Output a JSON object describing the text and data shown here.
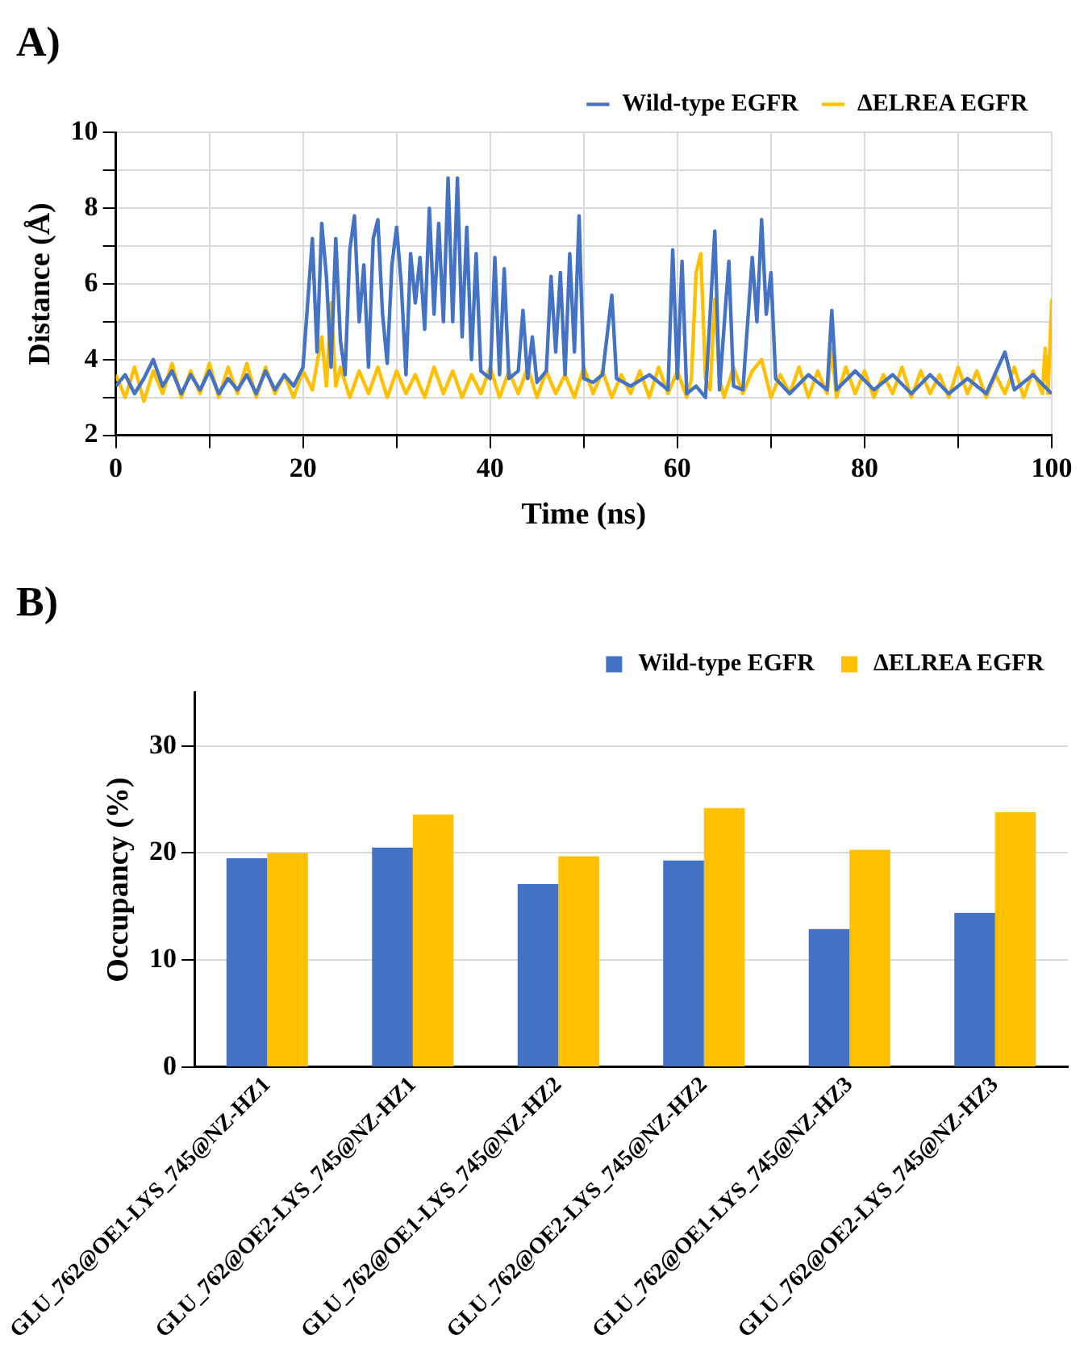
{
  "chart_data": [
    {
      "type": "line",
      "title": "A)",
      "xlabel": "Time (ns)",
      "ylabel": "Distance (Å)",
      "xlim": [
        0,
        100
      ],
      "xticks": [
        0,
        {
          "value": 10,
          "label": null
        },
        20,
        {
          "value": 30,
          "label": null
        },
        40,
        {
          "value": 50,
          "label": null
        },
        60,
        {
          "value": 70,
          "label": null
        },
        80,
        {
          "value": 90,
          "label": null
        },
        100
      ],
      "ylim": [
        2,
        10
      ],
      "yticks": [
        2,
        {
          "value": 3,
          "label": null
        },
        4,
        {
          "value": 5,
          "label": null
        },
        6,
        {
          "value": 7,
          "label": null
        },
        8,
        {
          "value": 9,
          "label": null
        },
        10
      ],
      "grid": true,
      "legend": "top right",
      "marker": "none",
      "line_style": "solid",
      "series": [
        {
          "name": "Wild-type EGFR",
          "color": "#4472c4",
          "x": [
            0,
            1,
            2,
            3,
            4,
            5,
            6,
            7,
            8,
            9,
            10,
            11,
            12,
            13,
            14,
            15,
            16,
            17,
            18,
            19,
            20,
            20.5,
            21,
            21.5,
            22,
            22.5,
            23,
            23.5,
            24,
            24.5,
            25,
            25.5,
            26,
            26.5,
            27,
            27.5,
            28,
            28.5,
            29,
            29.5,
            30,
            30.5,
            31,
            31.5,
            32,
            32.5,
            33,
            33.5,
            34,
            34.5,
            35,
            35.5,
            36,
            36.5,
            37,
            37.5,
            38,
            38.5,
            39,
            40,
            40.5,
            41,
            41.5,
            42,
            43,
            43.5,
            44,
            44.5,
            45,
            46,
            46.5,
            47,
            47.5,
            48,
            48.5,
            49,
            49.5,
            50,
            51,
            52,
            53,
            53.5,
            55,
            57,
            59,
            59.5,
            60,
            60.5,
            61,
            62,
            63,
            64,
            64.5,
            65.5,
            66,
            67,
            68,
            68.5,
            69,
            69.5,
            70,
            70.5,
            72,
            74,
            76,
            76.5,
            77,
            79,
            81,
            83,
            85,
            87,
            89,
            91,
            93,
            95,
            96,
            98,
            100
          ],
          "values": [
            3.3,
            3.6,
            3.1,
            3.5,
            4.0,
            3.3,
            3.7,
            3.1,
            3.6,
            3.2,
            3.7,
            3.1,
            3.5,
            3.2,
            3.6,
            3.1,
            3.7,
            3.2,
            3.6,
            3.3,
            3.8,
            5.5,
            7.2,
            4.2,
            7.6,
            6.2,
            3.8,
            7.2,
            4.5,
            3.6,
            6.9,
            7.8,
            5.0,
            6.5,
            3.8,
            7.2,
            7.7,
            5.2,
            3.9,
            6.5,
            7.5,
            6.0,
            3.6,
            6.8,
            5.5,
            6.7,
            4.8,
            8.0,
            5.2,
            7.6,
            5.0,
            8.8,
            5.0,
            8.8,
            4.6,
            7.5,
            4.0,
            6.8,
            3.7,
            3.5,
            6.7,
            3.6,
            6.4,
            3.5,
            3.7,
            5.3,
            3.5,
            4.6,
            3.4,
            3.7,
            6.2,
            4.2,
            6.3,
            3.6,
            6.8,
            4.2,
            7.8,
            3.5,
            3.4,
            3.6,
            5.7,
            3.5,
            3.3,
            3.6,
            3.2,
            6.9,
            3.5,
            6.6,
            3.1,
            3.3,
            3.0,
            7.4,
            3.2,
            6.6,
            3.3,
            3.2,
            6.7,
            5.0,
            7.7,
            5.2,
            6.3,
            3.5,
            3.1,
            3.6,
            3.2,
            5.3,
            3.2,
            3.7,
            3.2,
            3.6,
            3.1,
            3.6,
            3.1,
            3.5,
            3.1,
            4.2,
            3.2,
            3.6,
            3.1
          ]
        },
        {
          "name": "ΔELREA EGFR",
          "color": "#ffc000",
          "x": [
            0,
            1,
            2,
            3,
            4,
            5,
            6,
            7,
            8,
            9,
            10,
            11,
            12,
            13,
            14,
            15,
            16,
            17,
            18,
            19,
            20,
            21,
            22,
            22.5,
            23,
            23.5,
            24,
            25,
            26,
            27,
            28,
            29,
            30,
            31,
            32,
            33,
            34,
            35,
            36,
            37,
            38,
            39,
            40,
            41,
            42,
            43,
            44,
            45,
            46,
            47,
            48,
            49,
            50,
            51,
            52,
            53,
            54,
            55,
            56,
            57,
            58,
            59,
            60,
            61,
            61.5,
            62,
            62.5,
            63,
            63.5,
            64,
            64.5,
            65,
            66,
            67,
            68,
            69,
            70,
            71,
            72,
            73,
            74,
            75,
            76,
            76.5,
            77,
            78,
            79,
            80,
            81,
            82,
            83,
            84,
            85,
            86,
            87,
            88,
            89,
            90,
            91,
            92,
            93,
            94,
            95,
            96,
            97,
            98,
            99,
            99.3,
            99.6,
            100
          ],
          "values": [
            3.6,
            3.0,
            3.8,
            2.9,
            3.7,
            3.1,
            3.9,
            3.0,
            3.7,
            3.1,
            3.9,
            3.0,
            3.8,
            3.1,
            3.9,
            3.0,
            3.8,
            3.1,
            3.6,
            3.0,
            3.7,
            3.2,
            4.6,
            3.3,
            5.5,
            3.3,
            3.8,
            3.0,
            3.7,
            3.1,
            3.8,
            3.0,
            3.7,
            3.1,
            3.6,
            3.0,
            3.8,
            3.1,
            3.7,
            3.0,
            3.6,
            3.1,
            3.8,
            3.0,
            3.7,
            3.1,
            3.8,
            3.0,
            3.7,
            3.1,
            3.6,
            3.0,
            3.8,
            3.1,
            3.7,
            3.0,
            3.6,
            3.1,
            3.7,
            3.0,
            3.8,
            3.1,
            3.7,
            3.0,
            3.5,
            6.3,
            6.8,
            3.5,
            3.2,
            5.6,
            3.5,
            3.0,
            3.8,
            3.1,
            3.7,
            4.0,
            3.0,
            3.6,
            3.1,
            3.8,
            3.0,
            3.7,
            3.1,
            4.3,
            3.0,
            3.8,
            3.1,
            3.7,
            3.0,
            3.6,
            3.1,
            3.8,
            3.0,
            3.7,
            3.1,
            3.6,
            3.0,
            3.8,
            3.1,
            3.7,
            3.0,
            3.6,
            3.1,
            3.8,
            3.0,
            3.7,
            3.1,
            4.3,
            3.1,
            5.6
          ]
        }
      ]
    },
    {
      "type": "bar",
      "title": "B)",
      "ylabel": "Occupancy (%)",
      "categories": [
        "GLU_762@OE1-LYS_745@NZ-HZ1",
        "GLU_762@OE2-LYS_745@NZ-HZ1",
        "GLU_762@OE1-LYS_745@NZ-HZ2",
        "GLU_762@OE2-LYS_745@NZ-HZ2",
        "GLU_762@OE1-LYS_745@NZ-HZ3",
        "GLU_762@OE2-LYS_745@NZ-HZ3"
      ],
      "ylim": [
        0,
        35
      ],
      "yticks": [
        0,
        10,
        20,
        30
      ],
      "grid": "y",
      "legend": "top right",
      "series": [
        {
          "name": "Wild-type EGFR",
          "color": "#4472c4",
          "values": [
            19.5,
            20.5,
            17.1,
            19.3,
            12.9,
            14.4
          ]
        },
        {
          "name": "ΔELREA EGFR",
          "color": "#ffc000",
          "values": [
            20.0,
            23.6,
            19.7,
            24.2,
            20.3,
            23.8
          ]
        }
      ]
    }
  ]
}
